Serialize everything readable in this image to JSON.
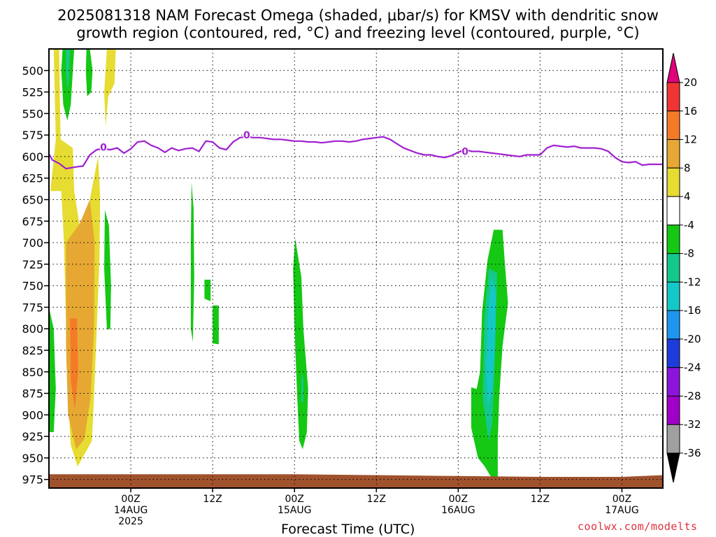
{
  "chart_data": {
    "type": "heatmap",
    "title": "2025081318 NAM Forecast Omega (shaded, μbar/s) for KMSV with dendritic snow",
    "subtitle": "growth region (contoured, red, °C) and freezing level (contoured, purple, °C)",
    "xlabel": "Forecast Time (UTC)",
    "credit": "coolwx.com/modelts",
    "y_ticks": [
      500,
      525,
      550,
      575,
      600,
      625,
      650,
      675,
      700,
      725,
      750,
      775,
      800,
      825,
      850,
      875,
      900,
      925,
      950,
      975
    ],
    "y_range_hPa": [
      475,
      985
    ],
    "x_range_hours": [
      -6,
      84
    ],
    "x_ticks": [
      {
        "hour": 6,
        "line1": "00Z",
        "line2": "14AUG",
        "line3": "2025"
      },
      {
        "hour": 18,
        "line1": "12Z",
        "line2": "",
        "line3": ""
      },
      {
        "hour": 30,
        "line1": "00Z",
        "line2": "15AUG",
        "line3": ""
      },
      {
        "hour": 42,
        "line1": "12Z",
        "line2": "",
        "line3": ""
      },
      {
        "hour": 54,
        "line1": "00Z",
        "line2": "16AUG",
        "line3": ""
      },
      {
        "hour": 66,
        "line1": "12Z",
        "line2": "",
        "line3": ""
      },
      {
        "hour": 78,
        "line1": "00Z",
        "line2": "17AUG",
        "line3": ""
      }
    ],
    "colorbar": {
      "labels": [
        "20",
        "16",
        "12",
        "8",
        "4",
        "-4",
        "-8",
        "-12",
        "-16",
        "-20",
        "-24",
        "-28",
        "-32",
        "-36"
      ],
      "colors": [
        "#e0007a",
        "#f03434",
        "#f57a28",
        "#e6a832",
        "#e6dc32",
        "#ffffff",
        "#14c814",
        "#14c88c",
        "#14c8c8",
        "#1e96f0",
        "#1e3cdc",
        "#8c14dc",
        "#a000c8",
        "#a0a0a0",
        "#000000"
      ]
    },
    "freezing_level": {
      "label": "0",
      "color": "#a020d0",
      "points": [
        [
          -6,
          597
        ],
        [
          -5.5,
          604
        ],
        [
          -4.5,
          608
        ],
        [
          -3.5,
          614
        ],
        [
          -2,
          612
        ],
        [
          -1,
          611
        ],
        [
          0,
          598
        ],
        [
          1,
          592
        ],
        [
          2,
          591
        ],
        [
          3,
          592
        ],
        [
          4,
          590
        ],
        [
          5,
          596
        ],
        [
          6,
          591
        ],
        [
          7,
          583
        ],
        [
          8,
          582
        ],
        [
          9,
          587
        ],
        [
          10,
          590
        ],
        [
          11,
          595
        ],
        [
          12,
          590
        ],
        [
          13,
          593
        ],
        [
          14,
          591
        ],
        [
          15,
          590
        ],
        [
          16,
          594
        ],
        [
          17,
          582
        ],
        [
          18,
          583
        ],
        [
          19,
          590
        ],
        [
          20,
          592
        ],
        [
          21,
          583
        ],
        [
          22,
          578
        ],
        [
          23,
          577
        ],
        [
          24,
          578
        ],
        [
          25,
          578
        ],
        [
          26,
          579
        ],
        [
          27,
          580
        ],
        [
          28,
          580
        ],
        [
          29,
          581
        ],
        [
          30,
          582
        ],
        [
          31,
          582
        ],
        [
          32,
          583
        ],
        [
          33,
          583
        ],
        [
          34,
          584
        ],
        [
          35,
          583
        ],
        [
          36,
          582
        ],
        [
          37,
          582
        ],
        [
          38,
          583
        ],
        [
          39,
          582
        ],
        [
          40,
          580
        ],
        [
          41,
          579
        ],
        [
          42,
          578
        ],
        [
          43,
          577
        ],
        [
          44,
          580
        ],
        [
          45,
          585
        ],
        [
          46,
          590
        ],
        [
          47,
          593
        ],
        [
          48,
          596
        ],
        [
          49,
          598
        ],
        [
          50,
          598
        ],
        [
          51,
          600
        ],
        [
          52,
          601
        ],
        [
          53,
          599
        ],
        [
          54,
          595
        ],
        [
          55,
          592
        ],
        [
          56,
          594
        ],
        [
          57,
          594
        ],
        [
          58,
          595
        ],
        [
          59,
          596
        ],
        [
          60,
          597
        ],
        [
          61,
          598
        ],
        [
          62,
          599
        ],
        [
          63,
          600
        ],
        [
          64,
          598
        ],
        [
          65,
          598
        ],
        [
          66,
          598
        ],
        [
          67,
          590
        ],
        [
          68,
          587
        ],
        [
          69,
          588
        ],
        [
          70,
          589
        ],
        [
          71,
          588
        ],
        [
          72,
          590
        ],
        [
          73,
          590
        ],
        [
          74,
          590
        ],
        [
          75,
          591
        ],
        [
          76,
          594
        ],
        [
          77,
          601
        ],
        [
          78,
          606
        ],
        [
          79,
          607
        ],
        [
          80,
          606
        ],
        [
          81,
          610
        ],
        [
          82,
          609
        ],
        [
          83,
          609
        ],
        [
          84,
          609
        ]
      ],
      "label_positions": [
        [
          2,
          589
        ],
        [
          23,
          575
        ],
        [
          55,
          594
        ]
      ]
    },
    "ground": {
      "color": "#a0522d",
      "points": [
        [
          -6,
          969
        ],
        [
          6,
          969
        ],
        [
          18,
          969
        ],
        [
          30,
          969
        ],
        [
          42,
          970
        ],
        [
          54,
          971
        ],
        [
          66,
          972
        ],
        [
          78,
          972
        ],
        [
          84,
          970
        ]
      ]
    },
    "omega_regions": [
      {
        "value": 6,
        "color": "#e6dc32",
        "pts": [
          [
            -5.3,
            475
          ],
          [
            -4.5,
            475
          ],
          [
            -4.3,
            580
          ],
          [
            -2.5,
            590
          ],
          [
            -2.3,
            640
          ],
          [
            -1.5,
            680
          ],
          [
            0,
            650
          ],
          [
            1.2,
            600
          ],
          [
            1.5,
            645
          ],
          [
            1.4,
            720
          ],
          [
            1,
            800
          ],
          [
            0.6,
            880
          ],
          [
            0.3,
            930
          ],
          [
            -1.8,
            960
          ],
          [
            -2.8,
            935
          ],
          [
            -3.2,
            880
          ],
          [
            -3.8,
            700
          ],
          [
            -4.2,
            640
          ],
          [
            -5.8,
            640
          ],
          [
            -5,
            580
          ]
        ]
      },
      {
        "value": 10,
        "color": "#e6a832",
        "pts": [
          [
            -3.5,
            700
          ],
          [
            -1.5,
            678
          ],
          [
            0,
            650
          ],
          [
            0.7,
            700
          ],
          [
            0.6,
            800
          ],
          [
            0.1,
            880
          ],
          [
            -0.8,
            928
          ],
          [
            -2.0,
            940
          ],
          [
            -3.2,
            900
          ],
          [
            -3.5,
            820
          ]
        ]
      },
      {
        "value": 13,
        "color": "#f57a28",
        "pts": [
          [
            -2.9,
            788
          ],
          [
            -1.9,
            788
          ],
          [
            -1.7,
            850
          ],
          [
            -2.2,
            893
          ],
          [
            -2.8,
            860
          ]
        ]
      },
      {
        "value": 6,
        "color": "#e6dc32",
        "pts": [
          [
            2.5,
            475
          ],
          [
            3.8,
            475
          ],
          [
            3.6,
            515
          ],
          [
            2.7,
            530
          ],
          [
            2.3,
            565
          ],
          [
            2.1,
            525
          ]
        ]
      },
      {
        "value": -6,
        "color": "#14c814",
        "pts": [
          [
            -4,
            475
          ],
          [
            -2.3,
            475
          ],
          [
            -2.8,
            540
          ],
          [
            -3.3,
            558
          ],
          [
            -3.9,
            540
          ],
          [
            -4.2,
            500
          ]
        ]
      },
      {
        "value": -9,
        "color": "#14c88c",
        "pts": [
          [
            -3.5,
            475
          ],
          [
            -2.9,
            475
          ],
          [
            -3.1,
            515
          ],
          [
            -3.3,
            522
          ],
          [
            -3.5,
            500
          ]
        ]
      },
      {
        "value": -6,
        "color": "#14c814",
        "pts": [
          [
            -0.5,
            475
          ],
          [
            0,
            475
          ],
          [
            0.4,
            500
          ],
          [
            0.2,
            525
          ],
          [
            -0.4,
            530
          ],
          [
            -0.6,
            500
          ]
        ]
      },
      {
        "value": -6,
        "color": "#14c814",
        "pts": [
          [
            -6,
            775
          ],
          [
            -5.3,
            800
          ],
          [
            -5,
            870
          ],
          [
            -5.3,
            920
          ],
          [
            -6,
            920
          ]
        ]
      },
      {
        "value": -6,
        "color": "#14c814",
        "pts": [
          [
            2.2,
            662
          ],
          [
            2.8,
            680
          ],
          [
            3.1,
            750
          ],
          [
            3,
            800
          ],
          [
            2.5,
            801
          ],
          [
            2.1,
            730
          ]
        ]
      },
      {
        "value": -6,
        "color": "#14c814",
        "pts": [
          [
            14.9,
            630
          ],
          [
            15.2,
            660
          ],
          [
            15.3,
            740
          ],
          [
            15.1,
            815
          ],
          [
            14.8,
            800
          ],
          [
            14.8,
            700
          ]
        ]
      },
      {
        "value": -6,
        "color": "#14c814",
        "pts": [
          [
            16.8,
            743
          ],
          [
            17.7,
            743
          ],
          [
            17.7,
            768
          ],
          [
            16.8,
            765
          ]
        ]
      },
      {
        "value": -6,
        "color": "#14c814",
        "pts": [
          [
            18.0,
            773
          ],
          [
            18.9,
            773
          ],
          [
            18.9,
            818
          ],
          [
            18.0,
            817
          ]
        ]
      },
      {
        "value": -6,
        "color": "#14c814",
        "pts": [
          [
            30.1,
            695
          ],
          [
            31,
            740
          ],
          [
            31.3,
            800
          ],
          [
            32,
            870
          ],
          [
            31.8,
            920
          ],
          [
            31.2,
            940
          ],
          [
            30.7,
            930
          ],
          [
            30.4,
            880
          ],
          [
            30.0,
            800
          ],
          [
            29.8,
            730
          ]
        ]
      },
      {
        "value": -9,
        "color": "#14c88c",
        "pts": [
          [
            31.0,
            850
          ],
          [
            31.3,
            860
          ],
          [
            31.3,
            885
          ],
          [
            31.0,
            885
          ]
        ]
      },
      {
        "value": -6,
        "color": "#14c814",
        "pts": [
          [
            59.2,
            685
          ],
          [
            60.5,
            685
          ],
          [
            60.8,
            720
          ],
          [
            61.3,
            770
          ],
          [
            60.5,
            820
          ],
          [
            60,
            880
          ],
          [
            59.8,
            930
          ],
          [
            59.8,
            975
          ],
          [
            58.8,
            972
          ],
          [
            57.9,
            960
          ],
          [
            56.9,
            950
          ],
          [
            55.9,
            915
          ],
          [
            55.9,
            868
          ],
          [
            56.7,
            870
          ],
          [
            57.2,
            850
          ],
          [
            57.5,
            780
          ],
          [
            58.3,
            720
          ]
        ]
      },
      {
        "value": -9,
        "color": "#14c88c",
        "pts": [
          [
            58.5,
            730
          ],
          [
            59.7,
            735
          ],
          [
            59.5,
            800
          ],
          [
            59.3,
            850
          ],
          [
            59.0,
            910
          ],
          [
            58.4,
            930
          ],
          [
            57.6,
            880
          ],
          [
            57.8,
            790
          ]
        ]
      },
      {
        "value": -13,
        "color": "#14c8c8",
        "pts": [
          [
            58.9,
            740
          ],
          [
            59.5,
            760
          ],
          [
            59.4,
            820
          ],
          [
            59.0,
            870
          ],
          [
            58.3,
            890
          ],
          [
            58.1,
            840
          ],
          [
            58.4,
            780
          ]
        ]
      }
    ]
  }
}
